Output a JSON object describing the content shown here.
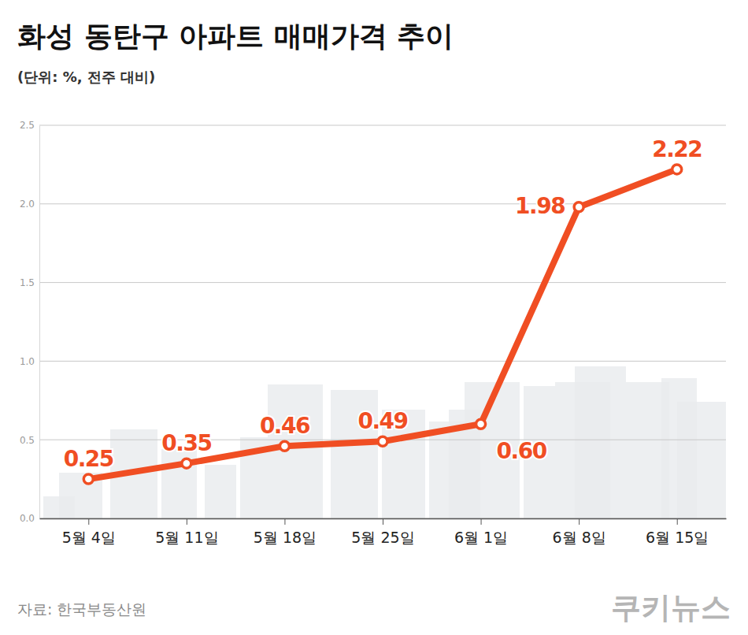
{
  "chart_data": {
    "type": "line",
    "title": "화성 동탄구 아파트 매매가격 추이",
    "subtitle": "(단위: %, 전주 대비)",
    "source": "자료: 한국부동산원",
    "logo": "쿠키뉴스",
    "categories": [
      "5월 4일",
      "5월 11일",
      "5월 18일",
      "5월 25일",
      "6월 1일",
      "6월 8일",
      "6월 15일"
    ],
    "values": [
      0.25,
      0.35,
      0.46,
      0.49,
      0.6,
      1.98,
      2.22
    ],
    "value_labels": [
      "0.25",
      "0.35",
      "0.46",
      "0.49",
      "0.60",
      "1.98",
      "2.22"
    ],
    "color": "#f04e23",
    "marker": "circle",
    "ylim": [
      0,
      2.5
    ],
    "yticks": [
      {
        "value": 0,
        "label": "0.0"
      },
      0.5,
      {
        "value": 1,
        "label": "1.0"
      },
      1.5,
      {
        "value": 2,
        "label": "2.0"
      },
      2.5
    ],
    "grid": true,
    "data_labels": true
  }
}
